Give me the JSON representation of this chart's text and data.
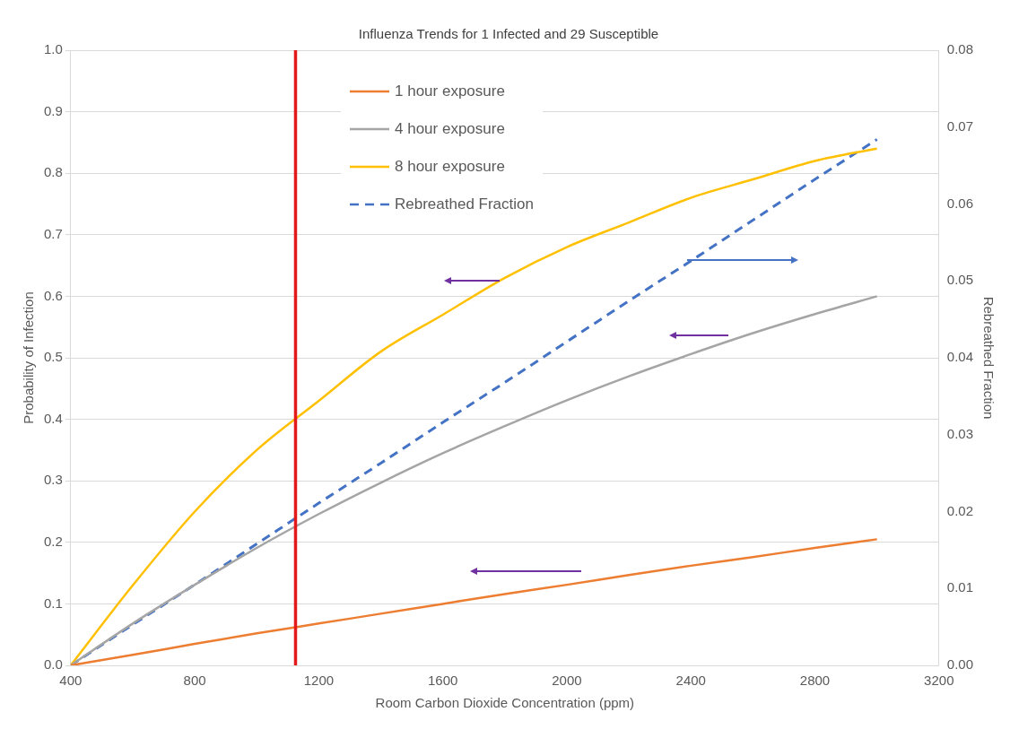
{
  "chart_data": {
    "type": "line",
    "title": "Influenza Trends for 1 Infected and 29 Susceptible",
    "xlabel": "Room Carbon Dioxide Concentration (ppm)",
    "ylabel": "Probability of Infection",
    "y2label": "Rebreathed Fraction",
    "x": [
      400,
      600,
      800,
      1000,
      1200,
      1400,
      1600,
      1800,
      2000,
      2200,
      2400,
      2600,
      2800,
      3000
    ],
    "series": [
      {
        "name": "1 hour exposure",
        "color": "#ed7d31",
        "values": [
          0,
          0.017,
          0.035,
          0.052,
          0.068,
          0.084,
          0.1,
          0.116,
          0.131,
          0.147,
          0.162,
          0.176,
          0.191,
          0.205
        ]
      },
      {
        "name": "4 hour exposure",
        "color": "#a5a5a5",
        "values": [
          0,
          0.068,
          0.131,
          0.191,
          0.246,
          0.297,
          0.345,
          0.389,
          0.431,
          0.47,
          0.506,
          0.54,
          0.571,
          0.6
        ]
      },
      {
        "name": "8 hour exposure",
        "color": "#ffc000",
        "values": [
          0,
          0.13,
          0.25,
          0.35,
          0.43,
          0.51,
          0.57,
          0.63,
          0.68,
          0.72,
          0.76,
          0.79,
          0.82,
          0.84
        ]
      },
      {
        "name": "Rebreathed Fraction",
        "color": "#4472c4",
        "axis": "y2",
        "line_style": "dashed",
        "values": [
          0,
          0.0053,
          0.0105,
          0.0158,
          0.0211,
          0.0263,
          0.0316,
          0.0368,
          0.0421,
          0.0474,
          0.0526,
          0.0579,
          0.0632,
          0.0684
        ]
      }
    ],
    "xlim": [
      400,
      3200
    ],
    "xticks": [
      400,
      800,
      1200,
      1600,
      2000,
      2400,
      2800,
      3200
    ],
    "ylim": [
      0,
      1
    ],
    "yticks": [
      {
        "value": 0,
        "label": "0.0"
      },
      {
        "value": 0.1,
        "label": "0.1"
      },
      {
        "value": 0.2,
        "label": "0.2"
      },
      {
        "value": 0.3,
        "label": "0.3"
      },
      {
        "value": 0.4,
        "label": "0.4"
      },
      {
        "value": 0.5,
        "label": "0.5"
      },
      {
        "value": 0.6,
        "label": "0.6"
      },
      {
        "value": 0.7,
        "label": "0.7"
      },
      {
        "value": 0.8,
        "label": "0.8"
      },
      {
        "value": 0.9,
        "label": "0.9"
      },
      {
        "value": 1,
        "label": "1.0"
      }
    ],
    "y2lim": [
      0,
      0.08
    ],
    "y2ticks": [
      {
        "value": 0,
        "label": "0.00"
      },
      0.01,
      0.02,
      0.03,
      0.04,
      0.05,
      0.06,
      0.07,
      0.08
    ],
    "ref_lines": [
      {
        "axis": "x",
        "value": 1125,
        "color": "#e31a1c"
      }
    ],
    "grid": "y",
    "legend": "top",
    "marker": "none",
    "line_style": "solid"
  }
}
